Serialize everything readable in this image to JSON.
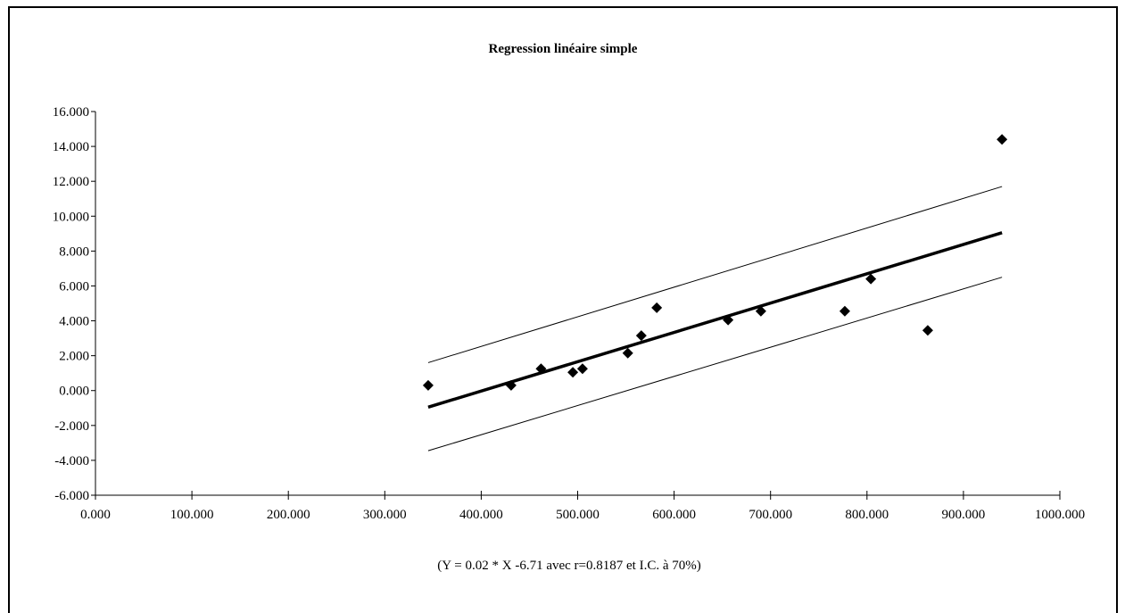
{
  "chart_data": {
    "type": "scatter",
    "title": "Regression linéaire simple",
    "caption": "(Y = 0.02 * X  -6.71 avec r=0.8187 et I.C. à 70%)",
    "xlabel": "",
    "ylabel": "",
    "xlim": [
      0,
      1000
    ],
    "ylim": [
      -6,
      16
    ],
    "x_ticks": [
      0,
      100,
      200,
      300,
      400,
      500,
      600,
      700,
      800,
      900,
      1000
    ],
    "x_tick_labels": [
      "0.000",
      "100.000",
      "200.000",
      "300.000",
      "400.000",
      "500.000",
      "600.000",
      "700.000",
      "800.000",
      "900.000",
      "1000.000"
    ],
    "y_ticks": [
      -6,
      -4,
      -2,
      0,
      2,
      4,
      6,
      8,
      10,
      12,
      14,
      16
    ],
    "y_tick_labels": [
      "-6.000",
      "-4.000",
      "-2.000",
      "0.000",
      "2.000",
      "4.000",
      "6.000",
      "8.000",
      "10.000",
      "12.000",
      "14.000",
      "16.000"
    ],
    "grid": false,
    "legend": "none",
    "points": [
      {
        "x": 345,
        "y": 0.3
      },
      {
        "x": 431,
        "y": 0.3
      },
      {
        "x": 462,
        "y": 1.25
      },
      {
        "x": 495,
        "y": 1.05
      },
      {
        "x": 505,
        "y": 1.25
      },
      {
        "x": 552,
        "y": 2.15
      },
      {
        "x": 566,
        "y": 3.15
      },
      {
        "x": 582,
        "y": 4.75
      },
      {
        "x": 656,
        "y": 4.05
      },
      {
        "x": 690,
        "y": 4.55
      },
      {
        "x": 777,
        "y": 4.55
      },
      {
        "x": 804,
        "y": 6.4
      },
      {
        "x": 863,
        "y": 3.45
      },
      {
        "x": 940,
        "y": 14.4
      }
    ],
    "regression_line": {
      "x": [
        345,
        940
      ],
      "y": [
        -0.95,
        9.05
      ]
    },
    "upper_bound": {
      "x": [
        345,
        940
      ],
      "y": [
        1.6,
        11.7
      ]
    },
    "lower_bound": {
      "x": [
        345,
        940
      ],
      "y": [
        -3.45,
        6.5
      ]
    },
    "colors": {
      "points": "#000000",
      "lines": "#000000",
      "background": "#ffffff"
    }
  }
}
